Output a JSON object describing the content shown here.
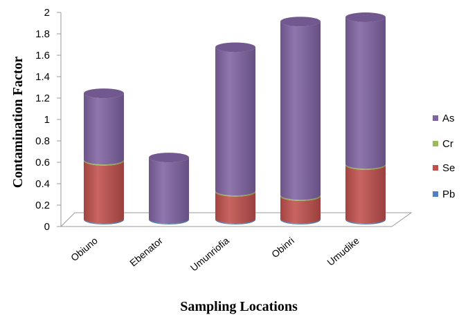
{
  "chart_data": {
    "type": "bar",
    "stacked": true,
    "style": "3d-cylinder",
    "title": "",
    "xlabel": "Sampling Locations",
    "ylabel": "Contamination Factor",
    "ylim": [
      0,
      2
    ],
    "yticks": [
      "0",
      "0.2",
      "0.4",
      "0.6",
      "0.8",
      "1",
      "1.2",
      "1.4",
      "1.6",
      "1.8",
      "2"
    ],
    "categories": [
      "Obiuno",
      "Ebenator",
      "Umunriofia",
      "Obinri",
      "Umudike"
    ],
    "series": [
      {
        "name": "Pb",
        "color": "#4f81bd",
        "values": [
          0.01,
          0.01,
          0.01,
          0.01,
          0.01
        ]
      },
      {
        "name": "Se",
        "color": "#c0504d",
        "values": [
          0.54,
          0.0,
          0.25,
          0.21,
          0.5
        ]
      },
      {
        "name": "Cr",
        "color": "#9bbb59",
        "values": [
          0.01,
          0.0,
          0.01,
          0.01,
          0.01
        ]
      },
      {
        "name": "As",
        "color": "#8064a2",
        "values": [
          0.62,
          0.57,
          1.34,
          1.62,
          1.37
        ]
      }
    ],
    "legend_order": [
      "As",
      "Cr",
      "Se",
      "Pb"
    ],
    "legend_position": "right",
    "grid": false
  }
}
